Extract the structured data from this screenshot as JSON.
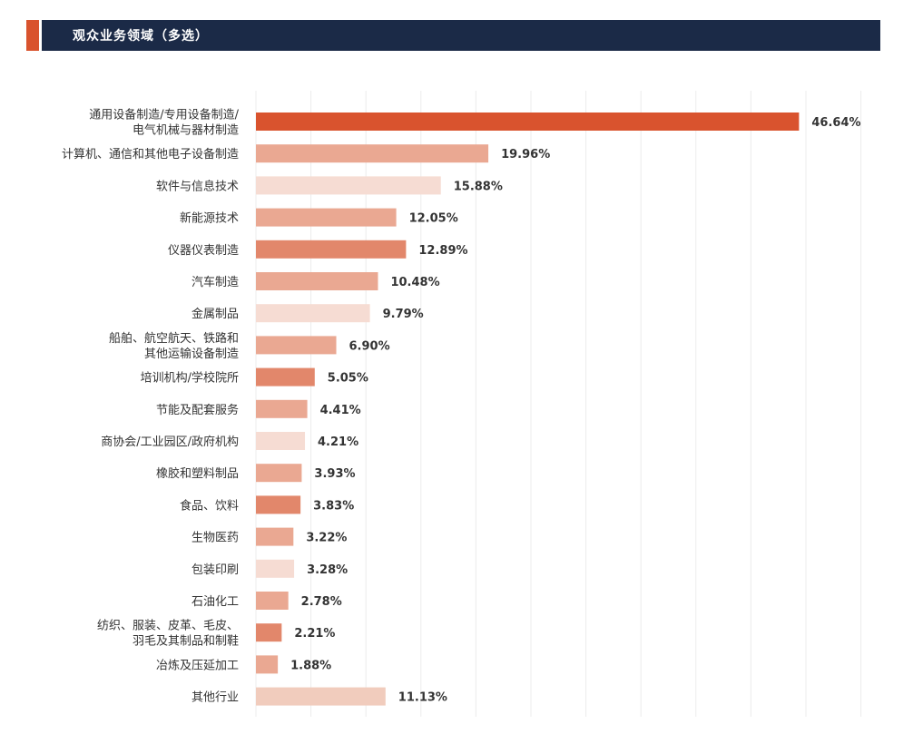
{
  "header": {
    "title": "观众业务领域（多选）",
    "accent_color": "#d9532e",
    "bar_color": "#1b2a47"
  },
  "chart_data": {
    "type": "bar",
    "orientation": "horizontal",
    "title": "观众业务领域（多选）",
    "categories": [
      [
        "通用设备制造/专用设备制造/",
        "电气机械与器材制造"
      ],
      [
        "计算机、通信和其他电子设备制造"
      ],
      [
        "软件与信息技术"
      ],
      [
        "新能源技术"
      ],
      [
        "仪器仪表制造"
      ],
      [
        "汽车制造"
      ],
      [
        "金属制品"
      ],
      [
        "船舶、航空航天、铁路和",
        "其他运输设备制造"
      ],
      [
        "培训机构/学校院所"
      ],
      [
        "节能及配套服务"
      ],
      [
        "商协会/工业园区/政府机构"
      ],
      [
        "橡胶和塑料制品"
      ],
      [
        "食品、饮料"
      ],
      [
        "生物医药"
      ],
      [
        "包装印刷"
      ],
      [
        "石油化工"
      ],
      [
        "纺织、服装、皮革、毛皮、",
        "羽毛及其制品和制鞋"
      ],
      [
        "冶炼及压延加工"
      ],
      [
        "其他行业"
      ]
    ],
    "values": [
      46.64,
      19.96,
      15.88,
      12.05,
      12.89,
      10.48,
      9.79,
      6.9,
      5.05,
      4.41,
      4.21,
      3.93,
      3.83,
      3.22,
      3.28,
      2.78,
      2.21,
      1.88,
      11.13
    ],
    "value_labels": [
      "46.64%",
      "19.96%",
      "15.88%",
      "12.05%",
      "12.89%",
      "10.48%",
      "9.79%",
      "6.90%",
      "5.05%",
      "4.41%",
      "4.21%",
      "3.93%",
      "3.83%",
      "3.22%",
      "3.28%",
      "2.78%",
      "2.21%",
      "1.88%",
      "11.13%"
    ],
    "colors": [
      "#d9532e",
      "#eaa892",
      "#f6dcd3",
      "#eaa892",
      "#e2876b",
      "#eaa892",
      "#f6dcd3",
      "#eaa892",
      "#e2876b",
      "#eaa892",
      "#f6dcd3",
      "#eaa892",
      "#e2876b",
      "#eaa892",
      "#f6dcd3",
      "#eaa892",
      "#e2876b",
      "#eaa892",
      "#f1ccbd"
    ],
    "xlim": [
      0,
      50
    ],
    "grid": true
  }
}
